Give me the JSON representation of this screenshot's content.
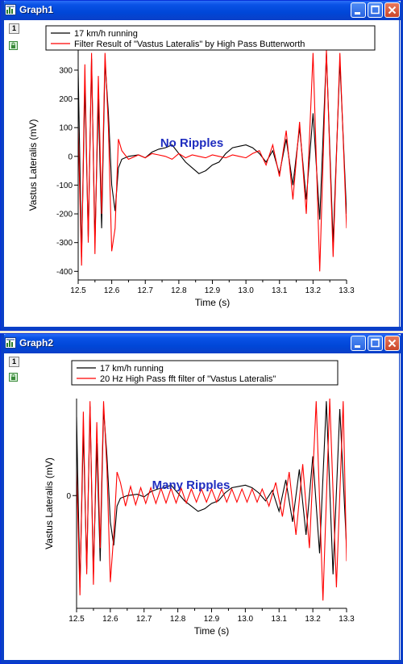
{
  "colors": {
    "title_bar": "#0a52e6",
    "series_black": "#000000",
    "series_red": "#ff0000",
    "annotation_blue": "#1f2dbf"
  },
  "graph1": {
    "title": "Graph1",
    "layer_label": "1",
    "icons": [
      "graph-window-icon",
      "minimize-icon",
      "maximize-icon",
      "close-icon",
      "lock-icon"
    ],
    "chart_data": {
      "type": "line",
      "xlabel": "Time (s)",
      "ylabel": "Vastus Lateralis (mV)",
      "xlim": [
        12.5,
        13.3
      ],
      "ylim": [
        -430,
        370
      ],
      "x_ticks": [
        "12.5",
        "12.6",
        "12.7",
        "12.8",
        "12.9",
        "13.0",
        "13.1",
        "13.2",
        "13.3"
      ],
      "y_ticks": [
        "300",
        "200",
        "100",
        "0",
        "-100",
        "-200",
        "-300",
        "-400"
      ],
      "y_tick_values": [
        300,
        200,
        100,
        0,
        -100,
        -200,
        -300,
        -400
      ],
      "annotation": "No Ripples",
      "series": [
        {
          "name": "17 km/h running",
          "color": "#000000",
          "x": [
            12.5,
            12.51,
            12.52,
            12.53,
            12.54,
            12.55,
            12.56,
            12.57,
            12.58,
            12.59,
            12.6,
            12.61,
            12.62,
            12.63,
            12.65,
            12.68,
            12.7,
            12.72,
            12.74,
            12.76,
            12.78,
            12.8,
            12.82,
            12.84,
            12.86,
            12.88,
            12.9,
            12.92,
            12.94,
            12.96,
            12.98,
            13.0,
            13.02,
            13.04,
            13.06,
            13.08,
            13.1,
            13.12,
            13.14,
            13.16,
            13.18,
            13.2,
            13.22,
            13.24,
            13.26,
            13.28,
            13.3
          ],
          "values": [
            300,
            -350,
            250,
            -280,
            340,
            -300,
            200,
            -250,
            330,
            150,
            -100,
            -190,
            -40,
            -10,
            0,
            5,
            -5,
            15,
            25,
            30,
            40,
            10,
            -20,
            -40,
            -60,
            -50,
            -30,
            -20,
            10,
            30,
            35,
            40,
            30,
            10,
            -20,
            20,
            -60,
            60,
            -100,
            100,
            -150,
            150,
            -220,
            360,
            -300,
            330,
            -200
          ]
        },
        {
          "name": "Filter Result of \"Vastus Lateralis\" by High Pass Butterworth",
          "color": "#ff0000",
          "x": [
            12.5,
            12.51,
            12.52,
            12.53,
            12.54,
            12.55,
            12.56,
            12.57,
            12.58,
            12.59,
            12.6,
            12.61,
            12.62,
            12.63,
            12.65,
            12.68,
            12.7,
            12.72,
            12.74,
            12.76,
            12.78,
            12.8,
            12.82,
            12.84,
            12.86,
            12.88,
            12.9,
            12.92,
            12.94,
            12.96,
            12.98,
            13.0,
            13.02,
            13.04,
            13.06,
            13.08,
            13.1,
            13.12,
            13.14,
            13.16,
            13.18,
            13.2,
            13.22,
            13.24,
            13.26,
            13.28,
            13.3
          ],
          "values": [
            100,
            -380,
            320,
            -300,
            360,
            -340,
            280,
            -200,
            360,
            100,
            -330,
            -250,
            60,
            20,
            -10,
            5,
            -5,
            10,
            5,
            0,
            -10,
            10,
            -5,
            5,
            0,
            -5,
            5,
            0,
            -5,
            5,
            0,
            -5,
            10,
            20,
            -30,
            40,
            -70,
            90,
            -150,
            120,
            -200,
            360,
            -400,
            370,
            -350,
            360,
            -250
          ]
        }
      ]
    }
  },
  "graph2": {
    "title": "Graph2",
    "layer_label": "1",
    "icons": [
      "graph-window-icon",
      "minimize-icon",
      "maximize-icon",
      "close-icon",
      "lock-icon"
    ],
    "chart_data": {
      "type": "line",
      "xlabel": "Time (s)",
      "ylabel": "Vastus Lateralis (mV)",
      "xlim": [
        12.5,
        13.3
      ],
      "ylim": [
        -430,
        370
      ],
      "x_ticks": [
        "12.5",
        "12.6",
        "12.7",
        "12.8",
        "12.9",
        "13.0",
        "13.1",
        "13.2",
        "13.3"
      ],
      "y_ticks": [
        "0"
      ],
      "y_tick_values": [
        0
      ],
      "annotation": "Many Ripples",
      "series": [
        {
          "name": "17 km/h running",
          "color": "#000000",
          "x": [
            12.5,
            12.51,
            12.52,
            12.53,
            12.54,
            12.55,
            12.56,
            12.57,
            12.58,
            12.59,
            12.6,
            12.61,
            12.62,
            12.63,
            12.65,
            12.68,
            12.7,
            12.72,
            12.74,
            12.76,
            12.78,
            12.8,
            12.82,
            12.84,
            12.86,
            12.88,
            12.9,
            12.92,
            12.94,
            12.96,
            12.98,
            13.0,
            13.02,
            13.04,
            13.06,
            13.08,
            13.1,
            13.12,
            13.14,
            13.16,
            13.18,
            13.2,
            13.22,
            13.24,
            13.26,
            13.28,
            13.3
          ],
          "values": [
            300,
            -350,
            250,
            -280,
            340,
            -300,
            200,
            -250,
            330,
            150,
            -100,
            -190,
            -40,
            -10,
            0,
            5,
            -5,
            15,
            25,
            30,
            40,
            10,
            -20,
            -40,
            -60,
            -50,
            -30,
            -20,
            10,
            30,
            35,
            40,
            30,
            10,
            -20,
            20,
            -60,
            60,
            -100,
            100,
            -150,
            150,
            -220,
            360,
            -300,
            330,
            -200
          ]
        },
        {
          "name": "20 Hz High Pass fft filter of \"Vastus Lateralis\"",
          "color": "#ff0000",
          "x": [
            12.5,
            12.51,
            12.52,
            12.53,
            12.54,
            12.55,
            12.56,
            12.57,
            12.58,
            12.59,
            12.6,
            12.61,
            12.62,
            12.63,
            12.645,
            12.66,
            12.675,
            12.69,
            12.705,
            12.72,
            12.735,
            12.75,
            12.765,
            12.78,
            12.795,
            12.81,
            12.825,
            12.84,
            12.855,
            12.87,
            12.885,
            12.9,
            12.915,
            12.93,
            12.945,
            12.96,
            12.975,
            12.99,
            13.005,
            13.02,
            13.035,
            13.05,
            13.07,
            13.09,
            13.11,
            13.13,
            13.15,
            13.17,
            13.19,
            13.21,
            13.23,
            13.25,
            13.27,
            13.29,
            13.3
          ],
          "values": [
            100,
            -380,
            320,
            -300,
            360,
            -340,
            280,
            -200,
            360,
            100,
            -330,
            -150,
            90,
            50,
            -40,
            35,
            -35,
            30,
            -30,
            30,
            -30,
            28,
            -28,
            28,
            -28,
            28,
            -28,
            25,
            -25,
            25,
            -25,
            25,
            -25,
            25,
            -25,
            25,
            -25,
            25,
            -25,
            25,
            -25,
            25,
            -40,
            50,
            -80,
            90,
            -150,
            120,
            -200,
            360,
            -400,
            370,
            -350,
            360,
            -250
          ]
        }
      ]
    }
  }
}
